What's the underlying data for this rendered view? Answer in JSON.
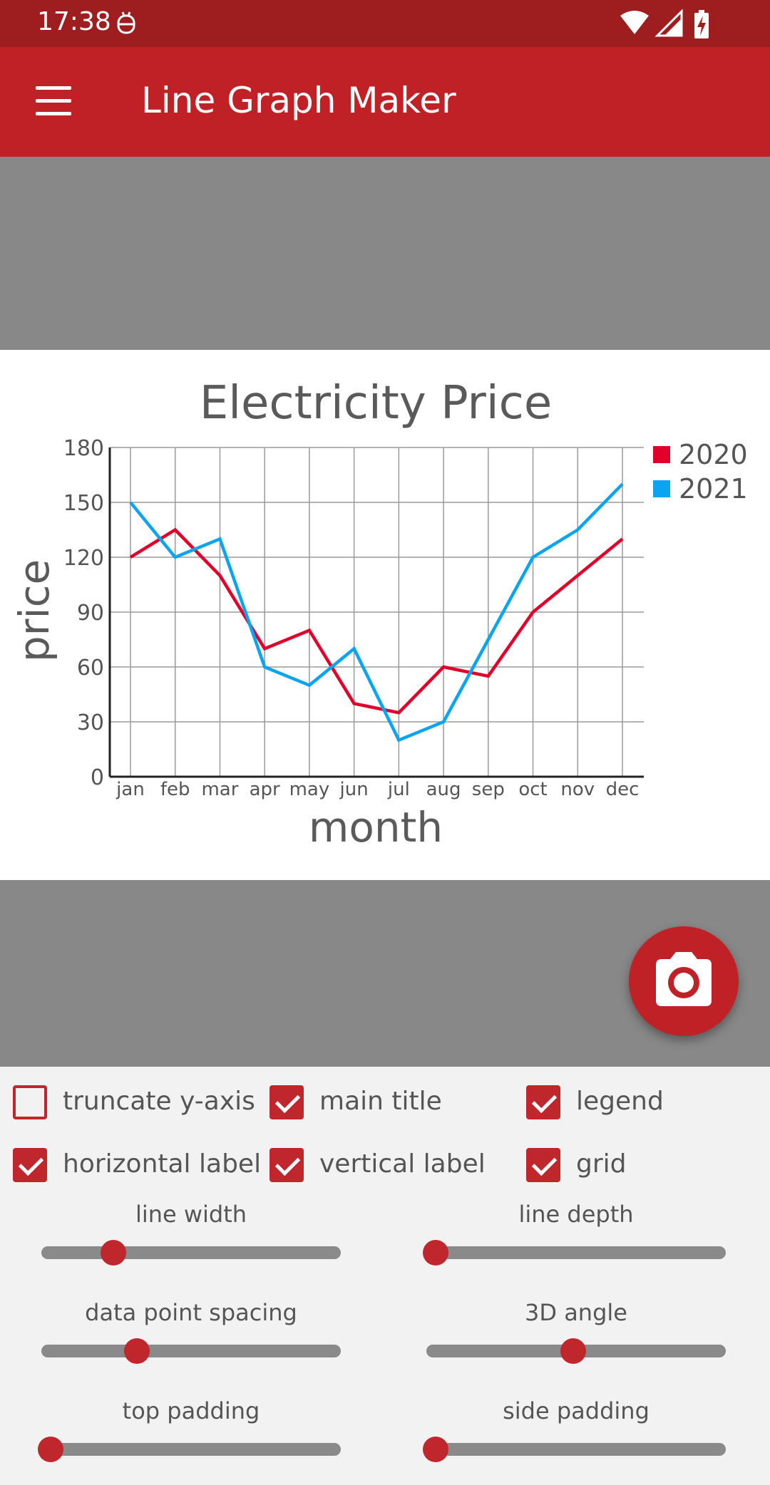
{
  "status_bar": {
    "time": "17:38",
    "icons": [
      "robot-icon",
      "wifi-icon",
      "cell-signal-icon",
      "battery-charging-icon"
    ]
  },
  "app_bar": {
    "title": "Line Graph Maker",
    "menu_icon": "hamburger-menu-icon"
  },
  "colors": {
    "status_bar": "#9e1d1f",
    "app_bar": "#bf2126",
    "accent": "#c0272d",
    "series_2020": "#e0002a",
    "series_2021": "#0aa4f0"
  },
  "chart_data": {
    "type": "line",
    "title": "Electricity Price",
    "xlabel": "month",
    "ylabel": "price",
    "categories": [
      "jan",
      "feb",
      "mar",
      "apr",
      "may",
      "jun",
      "jul",
      "aug",
      "sep",
      "oct",
      "nov",
      "dec"
    ],
    "series": [
      {
        "name": "2020",
        "color": "#e0002a",
        "values": [
          120,
          135,
          110,
          70,
          80,
          40,
          35,
          60,
          55,
          90,
          110,
          130
        ]
      },
      {
        "name": "2021",
        "color": "#0aa4f0",
        "values": [
          150,
          120,
          130,
          60,
          50,
          70,
          20,
          30,
          75,
          120,
          135,
          160
        ]
      }
    ],
    "yticks": [
      0,
      30,
      60,
      90,
      120,
      150,
      180
    ],
    "ylim": [
      0,
      180
    ],
    "grid": true,
    "legend_position": "top-right"
  },
  "fab": {
    "icon": "camera-icon"
  },
  "checkboxes": [
    {
      "label": "truncate y-axis",
      "checked": false
    },
    {
      "label": "main title",
      "checked": true
    },
    {
      "label": "legend",
      "checked": true
    },
    {
      "label": "horizontal label",
      "checked": true
    },
    {
      "label": "vertical label",
      "checked": true
    },
    {
      "label": "grid",
      "checked": true
    }
  ],
  "sliders": [
    {
      "label": "line width",
      "value": 0.24
    },
    {
      "label": "line depth",
      "value": 0.03
    },
    {
      "label": "data point spacing",
      "value": 0.32
    },
    {
      "label": "3D angle",
      "value": 0.49
    },
    {
      "label": "top padding",
      "value": 0.03
    },
    {
      "label": "side padding",
      "value": 0.03
    }
  ]
}
